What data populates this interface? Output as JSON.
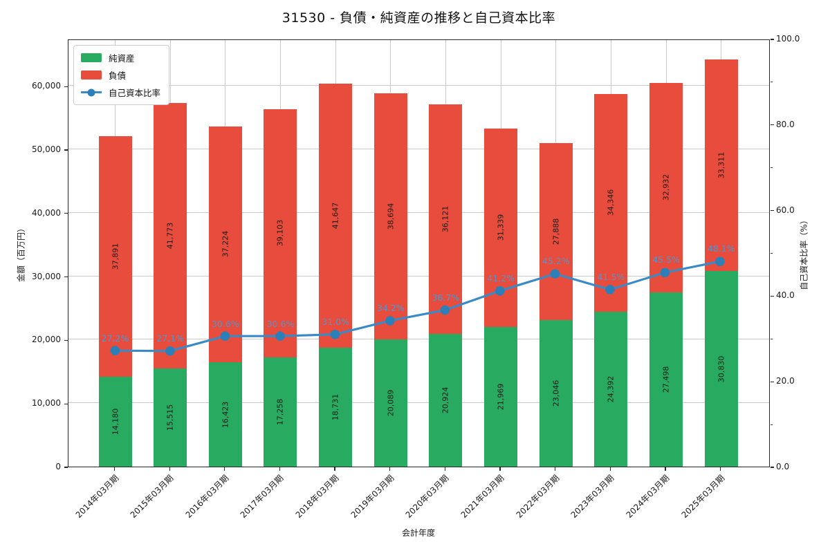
{
  "title": "31530 - 負債・純資産の推移と自己資本比率",
  "legend": {
    "items": [
      {
        "label": "純資産",
        "color": "#28ab60",
        "type": "swatch"
      },
      {
        "label": "負債",
        "color": "#e74c3c",
        "type": "swatch"
      },
      {
        "label": "自己資本比率",
        "color": "#3a8ac6",
        "marker_color": "#2d7fb8",
        "type": "line-marker"
      }
    ]
  },
  "axes": {
    "x": {
      "title": "会計年度",
      "categories": [
        "2014年03月期",
        "2015年03月期",
        "2016年03月期",
        "2017年03月期",
        "2018年03月期",
        "2019年03月期",
        "2020年03月期",
        "2021年03月期",
        "2022年03月期",
        "2023年03月期",
        "2024年03月期",
        "2025年03月期"
      ]
    },
    "left": {
      "title": "金額（百万円）",
      "ticks": [
        {
          "value": 0,
          "label": "0"
        },
        {
          "value": 10000,
          "label": "10,000"
        },
        {
          "value": 20000,
          "label": "20,000"
        },
        {
          "value": 30000,
          "label": "30,000"
        },
        {
          "value": 40000,
          "label": "40,000"
        },
        {
          "value": 50000,
          "label": "50,000"
        },
        {
          "value": 60000,
          "label": "60,000"
        }
      ]
    },
    "right": {
      "title": "自己資本比率（%）",
      "major_ticks": [
        {
          "value": 0,
          "label": "0.0"
        },
        {
          "value": 20,
          "label": "20.0"
        },
        {
          "value": 40,
          "label": "40.0"
        },
        {
          "value": 60,
          "label": "60.0"
        },
        {
          "value": 80,
          "label": "80.0"
        },
        {
          "value": 100,
          "label": "100.0"
        }
      ],
      "minor_tick_values": [
        10,
        30,
        50,
        70,
        90
      ]
    }
  },
  "chart_data": {
    "type": "bar",
    "subtype": "stacked-bar-with-line",
    "title": "31530 - 負債・純資産の推移と自己資本比率",
    "xlabel": "会計年度",
    "ylabel": "金額（百万円）",
    "ylabel_right": "自己資本比率（%）",
    "ylim": [
      0,
      67430
    ],
    "ylim_right": [
      0,
      100
    ],
    "grid": true,
    "legend_position": "upper-left",
    "categories": [
      "2014年03月期",
      "2015年03月期",
      "2016年03月期",
      "2017年03月期",
      "2018年03月期",
      "2019年03月期",
      "2020年03月期",
      "2021年03月期",
      "2022年03月期",
      "2023年03月期",
      "2024年03月期",
      "2025年03月期"
    ],
    "series": [
      {
        "name": "純資産",
        "type": "bar",
        "stack_order": 0,
        "color": "#28ab60",
        "values": [
          14180,
          15515,
          16423,
          17258,
          18731,
          20089,
          20924,
          21969,
          23046,
          24392,
          27498,
          30830
        ],
        "labels": [
          "14,180",
          "15,515",
          "16,423",
          "17,258",
          "18,731",
          "20,089",
          "20,924",
          "21,969",
          "23,046",
          "24,392",
          "27,498",
          "30,830"
        ]
      },
      {
        "name": "負債",
        "type": "bar",
        "stack_order": 1,
        "color": "#e74c3c",
        "values": [
          37891,
          41773,
          37224,
          39103,
          41647,
          38694,
          36121,
          31339,
          27888,
          34346,
          32932,
          33311
        ],
        "labels": [
          "37,891",
          "41,773",
          "37,224",
          "39,103",
          "41,647",
          "38,694",
          "36,121",
          "31,339",
          "27,888",
          "34,346",
          "32,932",
          "33,311"
        ]
      },
      {
        "name": "自己資本比率",
        "type": "line",
        "axis": "right",
        "line_color": "#3a8ac6",
        "marker_color": "#2d7fb8",
        "label_color": "#4e96cf",
        "values": [
          27.2,
          27.1,
          30.6,
          30.6,
          31.0,
          34.2,
          36.7,
          41.2,
          45.2,
          41.5,
          45.5,
          48.1
        ],
        "labels": [
          "27.2%",
          "27.1%",
          "30.6%",
          "30.6%",
          "31.0%",
          "34.2%",
          "36.7%",
          "41.2%",
          "45.2%",
          "41.5%",
          "45.5%",
          "48.1%"
        ]
      }
    ]
  }
}
